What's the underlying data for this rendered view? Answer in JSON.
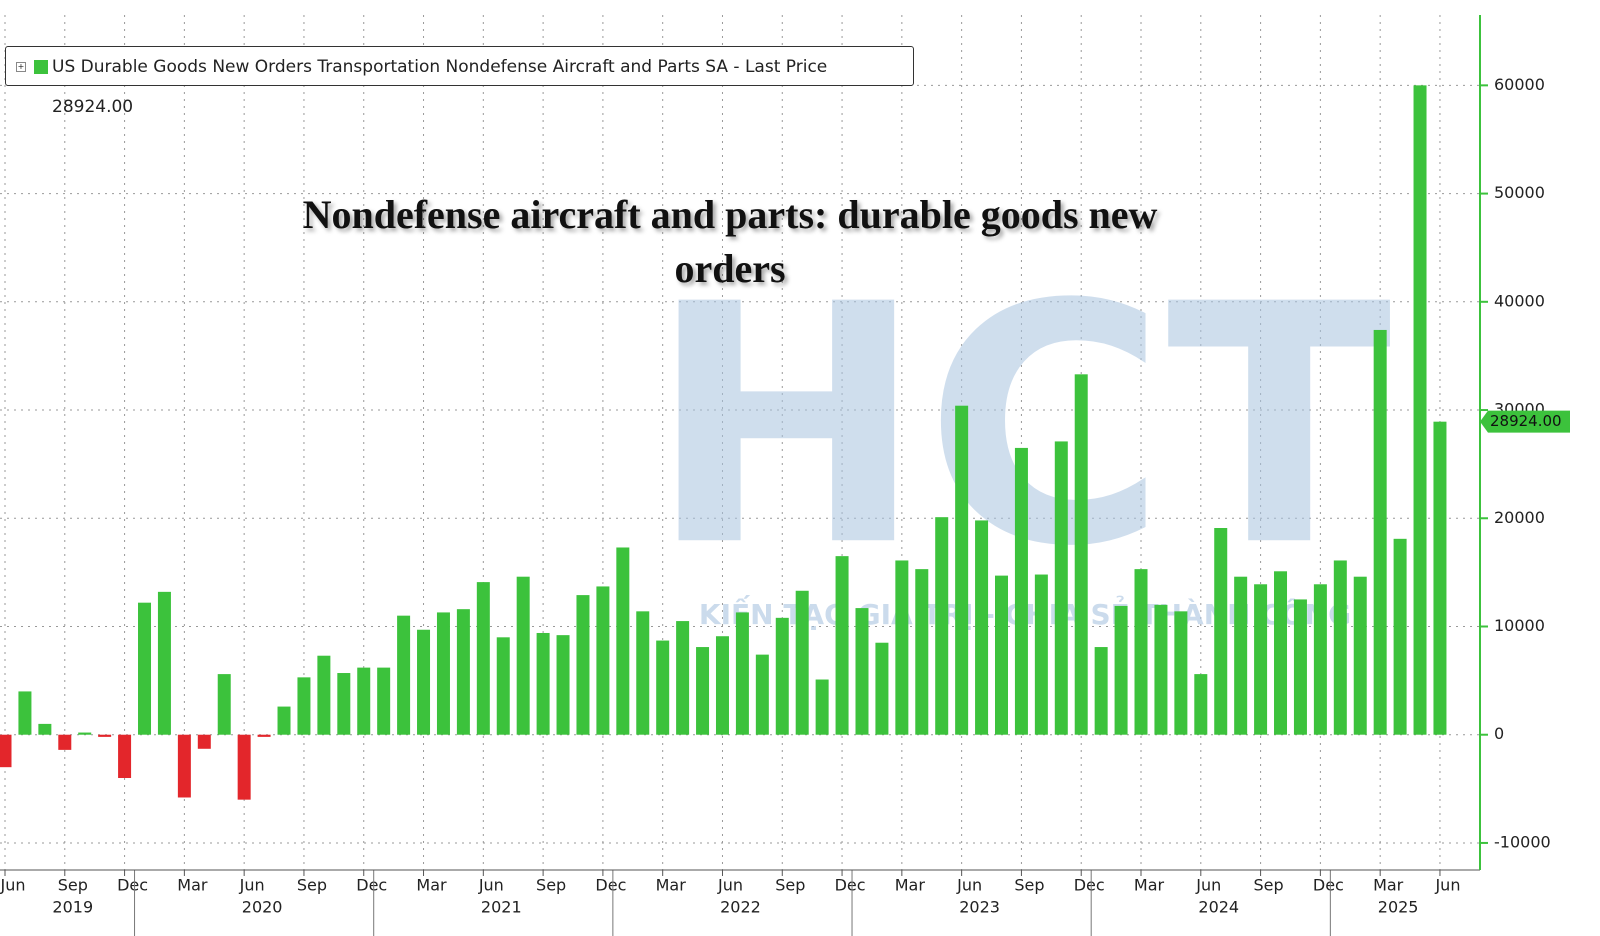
{
  "chart_data": {
    "type": "bar",
    "title": "Nondefense aircraft and parts: durable goods new orders",
    "legend_text": "US Durable Goods New Orders Transportation Nondefense Aircraft and Parts SA - Last Price 28924.00",
    "last_label": "28924.00",
    "watermark": "HCT",
    "watermark_slogan": "KIẾN TẠO GIÁ TRỊ - CHIA SẺ THÀNH CÔNG",
    "color": "#3cc23c",
    "negative_color": "#e3262b",
    "categories": [
      "Jun",
      null,
      null,
      "Sep",
      null,
      null,
      "Dec",
      null,
      null,
      "Mar",
      null,
      null,
      "Jun",
      null,
      null,
      "Sep",
      null,
      null,
      "Dec",
      null,
      null,
      "Mar",
      null,
      null,
      "Jun",
      null,
      null,
      "Sep",
      null,
      null,
      "Dec",
      null,
      null,
      "Mar",
      null,
      null,
      "Jun",
      null,
      null,
      "Sep",
      null,
      null,
      "Dec",
      null,
      null,
      "Mar",
      null,
      null,
      "Jun",
      null,
      null,
      "Sep",
      null,
      null,
      "Dec",
      null,
      null,
      "Mar",
      null,
      null,
      "Jun",
      null,
      null,
      "Sep",
      null,
      null,
      "Dec",
      null,
      null,
      "Mar",
      null,
      null,
      "Jun"
    ],
    "years": [
      "2019",
      "2020",
      "2021",
      "2022",
      "2023",
      "2024",
      "2025"
    ],
    "values": [
      -3000,
      4000,
      1000,
      -1400,
      200,
      -200,
      -4000,
      12200,
      13200,
      -5800,
      -1300,
      5600,
      -6000,
      -200,
      2600,
      5300,
      7300,
      5700,
      6200,
      6200,
      11000,
      9700,
      11300,
      11600,
      14100,
      9000,
      14600,
      9400,
      9200,
      12900,
      13700,
      17300,
      11400,
      8700,
      10500,
      8100,
      9100,
      11300,
      7400,
      10800,
      13300,
      5100,
      16500,
      11700,
      8500,
      16100,
      15300,
      20100,
      30400,
      19800,
      14700,
      26500,
      14800,
      27100,
      33300,
      8100,
      11900,
      15300,
      12000,
      11400,
      5600,
      19100,
      14600,
      13900,
      15100,
      12500,
      13900,
      16100,
      14600,
      37400,
      18100,
      60000,
      28924
    ],
    "ylim": [
      -12500,
      66500
    ],
    "yticks": [
      -10000,
      0,
      10000,
      20000,
      30000,
      40000,
      50000,
      60000
    ],
    "grid": true
  }
}
